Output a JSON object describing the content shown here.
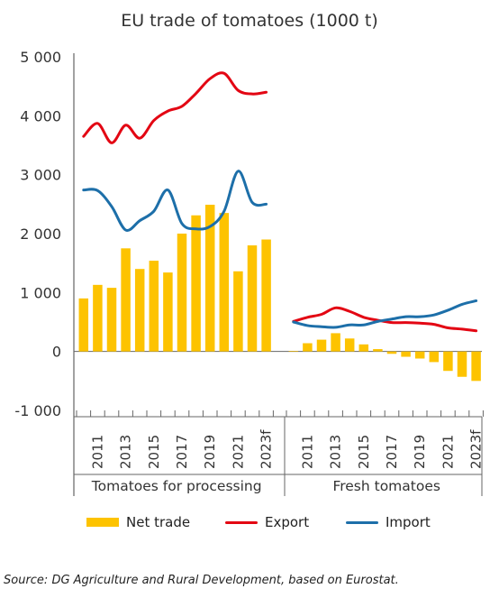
{
  "chart_data": {
    "type": "bar+line",
    "title": "EU trade of tomatoes (1000 t)",
    "source": "Source: DG Agriculture and Rural Development, based on Eurostat.",
    "ylim": [
      -1000,
      5000
    ],
    "yticks": [
      5000,
      4000,
      3000,
      2000,
      1000,
      0,
      -1000
    ],
    "ytick_labels": [
      "5 000",
      "4 000",
      "3 000",
      "2 000",
      "1 000",
      "0",
      "-1 000"
    ],
    "grid": false,
    "legend_position": "bottom",
    "colors": {
      "net_trade": "#fdc300",
      "export": "#e30613",
      "import": "#1d6fa9"
    },
    "groups": [
      {
        "name": "Tomatoes for processing",
        "years": [
          "2010",
          "2011",
          "2012",
          "2013",
          "2014",
          "2015",
          "2016",
          "2017",
          "2018",
          "2019",
          "2020",
          "2021",
          "2022",
          "2023f"
        ],
        "tick_labels": [
          "",
          "2011",
          "",
          "2013",
          "",
          "2015",
          "",
          "2017",
          "",
          "2019",
          "",
          "2021",
          "",
          "2023f"
        ],
        "net_trade": [
          900,
          1130,
          1080,
          1750,
          1400,
          1540,
          1340,
          2000,
          2310,
          2490,
          2350,
          1360,
          1800,
          1900
        ],
        "export": [
          3650,
          3870,
          3540,
          3840,
          3620,
          3920,
          4080,
          4160,
          4380,
          4630,
          4720,
          4430,
          4370,
          4400
        ],
        "import": [
          2740,
          2730,
          2460,
          2060,
          2220,
          2380,
          2740,
          2170,
          2080,
          2120,
          2380,
          3060,
          2530,
          2500
        ]
      },
      {
        "name": "Fresh tomatoes",
        "years": [
          "2010",
          "2011",
          "2012",
          "2013",
          "2014",
          "2015",
          "2016",
          "2017",
          "2018",
          "2019",
          "2020",
          "2021",
          "2022",
          "2023f"
        ],
        "tick_labels": [
          "",
          "2011",
          "",
          "2013",
          "",
          "2015",
          "",
          "2017",
          "",
          "2019",
          "",
          "2021",
          "",
          "2023f"
        ],
        "net_trade": [
          10,
          140,
          200,
          310,
          220,
          120,
          40,
          -40,
          -90,
          -120,
          -180,
          -330,
          -430,
          -500
        ],
        "export": [
          510,
          580,
          630,
          740,
          680,
          580,
          530,
          490,
          490,
          480,
          460,
          400,
          380,
          350
        ],
        "import": [
          500,
          440,
          420,
          410,
          450,
          450,
          510,
          550,
          590,
          590,
          620,
          700,
          800,
          860
        ]
      }
    ],
    "series": [
      {
        "key": "net_trade",
        "name": "Net trade"
      },
      {
        "key": "export",
        "name": "Export"
      },
      {
        "key": "import",
        "name": "Import"
      }
    ]
  }
}
